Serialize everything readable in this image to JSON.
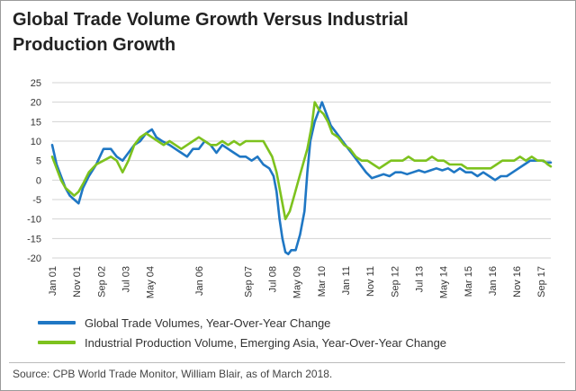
{
  "title_lines": [
    "Global Trade Volume Growth Versus Industrial",
    "Production Growth"
  ],
  "source": "Source: CPB World Trade Monitor, William Blair, as of March 2018.",
  "colors": {
    "global_trade": "#1f77c4",
    "industrial": "#7dc21e",
    "grid": "#d3d3d3"
  },
  "chart_data": {
    "type": "line",
    "title": "Global Trade Volume Growth Versus Industrial Production Growth",
    "xlabel": "",
    "ylabel": "",
    "ylim": [
      -20,
      25
    ],
    "y_ticks": [
      25,
      20,
      15,
      10,
      5,
      0,
      -5,
      -10,
      -15,
      -20
    ],
    "x_ticks": [
      "Jan 01",
      "Nov 01",
      "Sep 02",
      "Jul 03",
      "May 04",
      "Jan 06",
      "Sep 07",
      "Jul 08",
      "May 09",
      "Mar 10",
      "Jan 11",
      "Nov 11",
      "Sep 12",
      "Jul 13",
      "May 14",
      "Mar 15",
      "Jan 16",
      "Nov 16",
      "Sep 17"
    ],
    "x_tick_positions": [
      2001.0,
      2001.83,
      2002.67,
      2003.5,
      2004.33,
      2006.0,
      2007.67,
      2008.5,
      2009.33,
      2010.17,
      2011.0,
      2011.83,
      2012.67,
      2013.5,
      2014.33,
      2015.17,
      2016.0,
      2016.83,
      2017.67
    ],
    "x_range": [
      2001.0,
      2018.0
    ],
    "grid": true,
    "legend_position": "bottom",
    "series": [
      {
        "name": "Global Trade Volumes, Year-Over-Year Change",
        "color": "#1f77c4",
        "points": [
          [
            2001.0,
            9
          ],
          [
            2001.15,
            4
          ],
          [
            2001.3,
            1
          ],
          [
            2001.45,
            -2
          ],
          [
            2001.6,
            -4
          ],
          [
            2001.75,
            -5
          ],
          [
            2001.9,
            -6
          ],
          [
            2002.05,
            -2
          ],
          [
            2002.25,
            1
          ],
          [
            2002.5,
            4
          ],
          [
            2002.75,
            8
          ],
          [
            2003.0,
            8
          ],
          [
            2003.2,
            6
          ],
          [
            2003.4,
            5
          ],
          [
            2003.6,
            7
          ],
          [
            2003.8,
            9
          ],
          [
            2004.0,
            10
          ],
          [
            2004.2,
            12
          ],
          [
            2004.4,
            13
          ],
          [
            2004.55,
            11
          ],
          [
            2004.75,
            10
          ],
          [
            2005.0,
            9
          ],
          [
            2005.2,
            8
          ],
          [
            2005.4,
            7
          ],
          [
            2005.6,
            6
          ],
          [
            2005.8,
            8
          ],
          [
            2006.0,
            8
          ],
          [
            2006.2,
            10
          ],
          [
            2006.4,
            9
          ],
          [
            2006.6,
            7
          ],
          [
            2006.8,
            9
          ],
          [
            2007.0,
            8
          ],
          [
            2007.2,
            7
          ],
          [
            2007.4,
            6
          ],
          [
            2007.6,
            6
          ],
          [
            2007.8,
            5
          ],
          [
            2008.0,
            6
          ],
          [
            2008.2,
            4
          ],
          [
            2008.4,
            3
          ],
          [
            2008.55,
            1
          ],
          [
            2008.65,
            -3
          ],
          [
            2008.75,
            -10
          ],
          [
            2008.85,
            -15
          ],
          [
            2008.95,
            -18.5
          ],
          [
            2009.05,
            -19
          ],
          [
            2009.15,
            -18
          ],
          [
            2009.3,
            -18
          ],
          [
            2009.45,
            -14
          ],
          [
            2009.6,
            -8
          ],
          [
            2009.7,
            2
          ],
          [
            2009.8,
            10
          ],
          [
            2009.95,
            15
          ],
          [
            2010.1,
            18
          ],
          [
            2010.2,
            20
          ],
          [
            2010.35,
            17
          ],
          [
            2010.5,
            14
          ],
          [
            2010.7,
            12
          ],
          [
            2010.9,
            10
          ],
          [
            2011.1,
            8
          ],
          [
            2011.3,
            6
          ],
          [
            2011.5,
            4
          ],
          [
            2011.7,
            2
          ],
          [
            2011.9,
            0.5
          ],
          [
            2012.1,
            1
          ],
          [
            2012.3,
            1.5
          ],
          [
            2012.5,
            1
          ],
          [
            2012.7,
            2
          ],
          [
            2012.9,
            2
          ],
          [
            2013.1,
            1.5
          ],
          [
            2013.3,
            2
          ],
          [
            2013.5,
            2.5
          ],
          [
            2013.7,
            2
          ],
          [
            2013.9,
            2.5
          ],
          [
            2014.1,
            3
          ],
          [
            2014.3,
            2.5
          ],
          [
            2014.5,
            3
          ],
          [
            2014.7,
            2
          ],
          [
            2014.9,
            3
          ],
          [
            2015.1,
            2
          ],
          [
            2015.3,
            2
          ],
          [
            2015.5,
            1
          ],
          [
            2015.7,
            2
          ],
          [
            2015.9,
            1
          ],
          [
            2016.1,
            0
          ],
          [
            2016.3,
            1
          ],
          [
            2016.5,
            1
          ],
          [
            2016.7,
            2
          ],
          [
            2016.9,
            3
          ],
          [
            2017.1,
            4
          ],
          [
            2017.3,
            5
          ],
          [
            2017.5,
            5
          ],
          [
            2017.7,
            5
          ],
          [
            2017.85,
            4.5
          ],
          [
            2018.0,
            4.5
          ]
        ]
      },
      {
        "name": "Industrial Production Volume, Emerging Asia, Year-Over-Year Change",
        "color": "#7dc21e",
        "points": [
          [
            2001.0,
            6
          ],
          [
            2001.15,
            3
          ],
          [
            2001.3,
            0
          ],
          [
            2001.45,
            -2
          ],
          [
            2001.6,
            -3
          ],
          [
            2001.75,
            -4
          ],
          [
            2001.9,
            -3
          ],
          [
            2002.05,
            -1
          ],
          [
            2002.25,
            2
          ],
          [
            2002.5,
            4
          ],
          [
            2002.75,
            5
          ],
          [
            2003.0,
            6
          ],
          [
            2003.2,
            5
          ],
          [
            2003.4,
            2
          ],
          [
            2003.6,
            5
          ],
          [
            2003.8,
            9
          ],
          [
            2004.0,
            11
          ],
          [
            2004.2,
            12
          ],
          [
            2004.4,
            11
          ],
          [
            2004.6,
            10
          ],
          [
            2004.8,
            9
          ],
          [
            2005.0,
            10
          ],
          [
            2005.2,
            9
          ],
          [
            2005.4,
            8
          ],
          [
            2005.6,
            9
          ],
          [
            2005.8,
            10
          ],
          [
            2006.0,
            11
          ],
          [
            2006.2,
            10
          ],
          [
            2006.4,
            9
          ],
          [
            2006.6,
            9
          ],
          [
            2006.8,
            10
          ],
          [
            2007.0,
            9
          ],
          [
            2007.2,
            10
          ],
          [
            2007.4,
            9
          ],
          [
            2007.6,
            10
          ],
          [
            2007.8,
            10
          ],
          [
            2008.0,
            10
          ],
          [
            2008.2,
            10
          ],
          [
            2008.35,
            8
          ],
          [
            2008.5,
            6
          ],
          [
            2008.65,
            2
          ],
          [
            2008.8,
            -4
          ],
          [
            2008.95,
            -10
          ],
          [
            2009.1,
            -8
          ],
          [
            2009.25,
            -4
          ],
          [
            2009.4,
            0
          ],
          [
            2009.55,
            4
          ],
          [
            2009.7,
            8
          ],
          [
            2009.85,
            14
          ],
          [
            2009.95,
            20
          ],
          [
            2010.1,
            18
          ],
          [
            2010.25,
            17
          ],
          [
            2010.4,
            15
          ],
          [
            2010.55,
            12
          ],
          [
            2010.75,
            11
          ],
          [
            2010.95,
            9
          ],
          [
            2011.15,
            8
          ],
          [
            2011.35,
            6
          ],
          [
            2011.55,
            5
          ],
          [
            2011.75,
            5
          ],
          [
            2011.95,
            4
          ],
          [
            2012.15,
            3
          ],
          [
            2012.35,
            4
          ],
          [
            2012.55,
            5
          ],
          [
            2012.75,
            5
          ],
          [
            2012.95,
            5
          ],
          [
            2013.15,
            6
          ],
          [
            2013.35,
            5
          ],
          [
            2013.55,
            5
          ],
          [
            2013.75,
            5
          ],
          [
            2013.95,
            6
          ],
          [
            2014.15,
            5
          ],
          [
            2014.35,
            5
          ],
          [
            2014.55,
            4
          ],
          [
            2014.75,
            4
          ],
          [
            2014.95,
            4
          ],
          [
            2015.15,
            3
          ],
          [
            2015.35,
            3
          ],
          [
            2015.55,
            3
          ],
          [
            2015.75,
            3
          ],
          [
            2015.95,
            3
          ],
          [
            2016.15,
            4
          ],
          [
            2016.35,
            5
          ],
          [
            2016.55,
            5
          ],
          [
            2016.75,
            5
          ],
          [
            2016.95,
            6
          ],
          [
            2017.15,
            5
          ],
          [
            2017.35,
            6
          ],
          [
            2017.55,
            5
          ],
          [
            2017.75,
            5
          ],
          [
            2017.9,
            4
          ],
          [
            2018.0,
            3.5
          ]
        ]
      }
    ]
  }
}
